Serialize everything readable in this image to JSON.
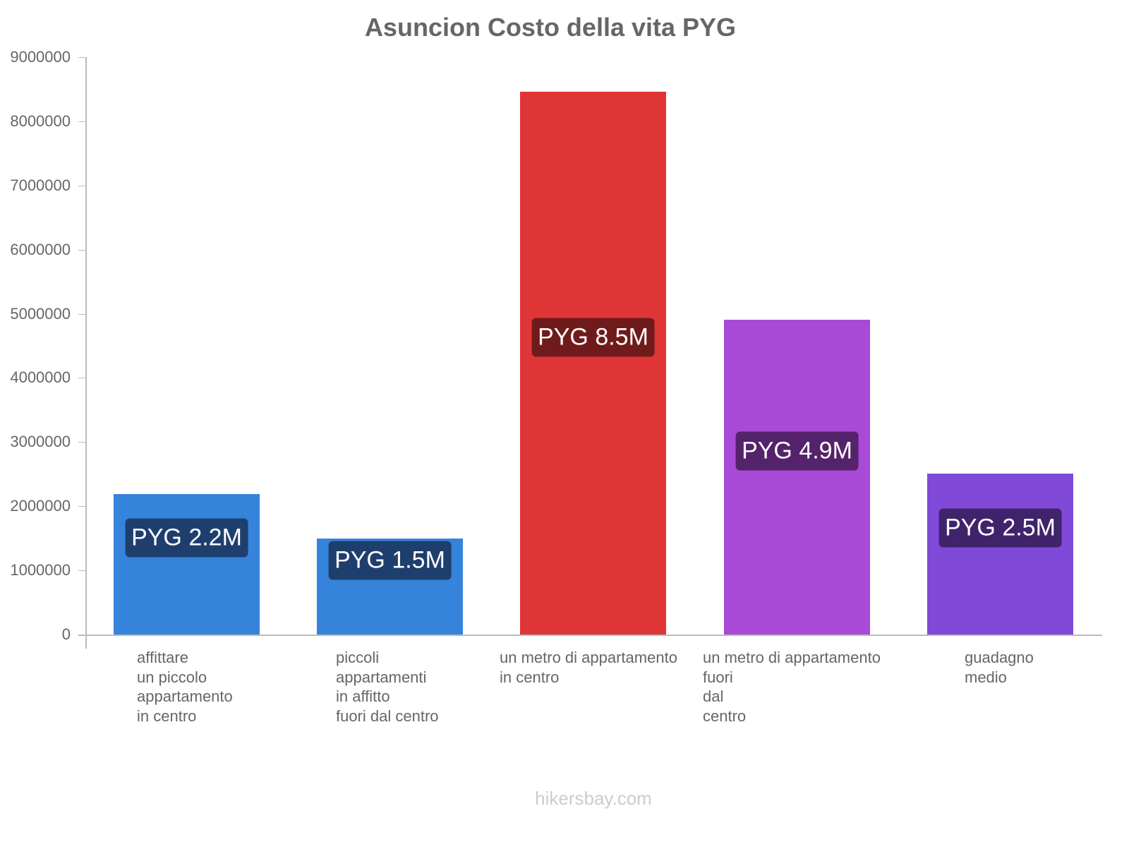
{
  "chart_data": {
    "type": "bar",
    "title": "Asuncion Costo della vita PYG",
    "xlabel": "",
    "ylabel": "",
    "ylim": [
      0,
      9000000
    ],
    "yticks": [
      0,
      1000000,
      2000000,
      3000000,
      4000000,
      5000000,
      6000000,
      7000000,
      8000000,
      9000000
    ],
    "ytick_labels": [
      "0",
      "1000000",
      "2000000",
      "3000000",
      "4000000",
      "5000000",
      "6000000",
      "7000000",
      "8000000",
      "9000000"
    ],
    "grid": false,
    "legend": null,
    "categories": [
      "affittare un piccolo appartamento in centro",
      "piccoli appartamenti in affitto fuori dal centro",
      "un metro di appartamento in centro",
      "un metro di appartamento fuori dal centro",
      "guadagno medio"
    ],
    "values": [
      2190000,
      1500000,
      8460000,
      4910000,
      2510000
    ],
    "data_labels": [
      "PYG 2.2M",
      "PYG 1.5M",
      "PYG 8.5M",
      "PYG 4.9M",
      "PYG 2.5M"
    ],
    "colors": [
      "#3683dc",
      "#3683dc",
      "#e03536",
      "#a84ad7",
      "#8049d7"
    ],
    "label_bg_colors": [
      "#1e3f6e",
      "#1e3f6e",
      "#701b1b",
      "#54236b",
      "#40246b"
    ]
  },
  "axis": {
    "y_ticks": [
      "0",
      "1000000",
      "2000000",
      "3000000",
      "4000000",
      "5000000",
      "6000000",
      "7000000",
      "8000000",
      "9000000"
    ]
  },
  "bars": [
    {
      "label": "PYG 2.2M",
      "category_lines": "affittare\nun piccolo\nappartamento\nin centro"
    },
    {
      "label": "PYG 1.5M",
      "category_lines": "piccoli\nappartamenti\nin affitto\nfuori dal centro"
    },
    {
      "label": "PYG 8.5M",
      "category_lines": "un metro di appartamento\nin centro"
    },
    {
      "label": "PYG 4.9M",
      "category_lines": "un metro di appartamento\nfuori\ndal\ncentro"
    },
    {
      "label": "PYG 2.5M",
      "category_lines": "guadagno\nmedio"
    }
  ],
  "watermark": "hikersbay.com"
}
